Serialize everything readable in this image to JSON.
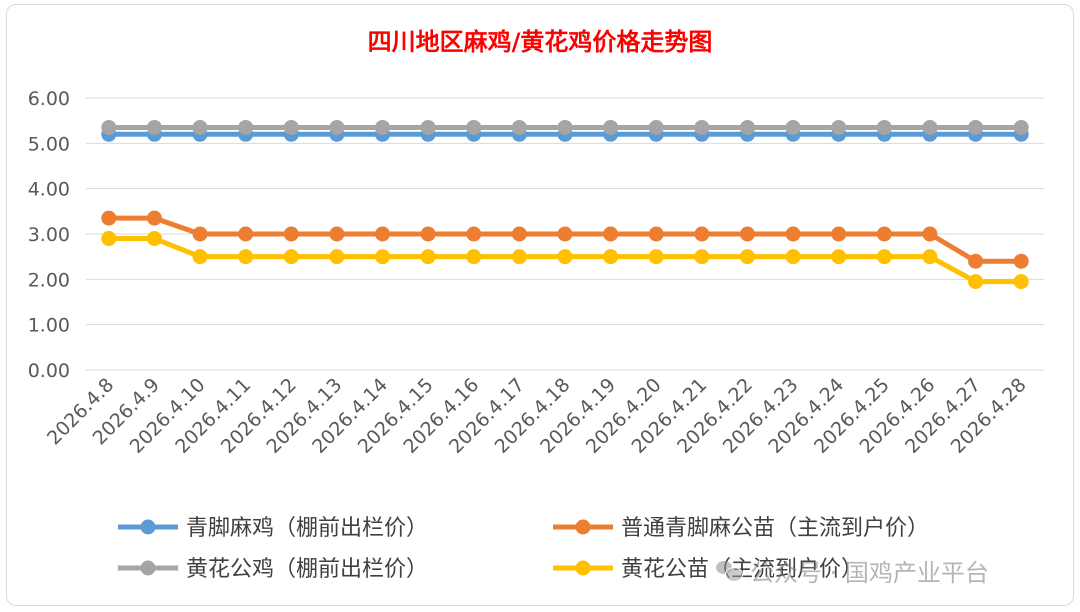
{
  "chart_data": {
    "type": "line",
    "title": "四川地区麻鸡/黄花鸡价格走势图",
    "title_color": "#ff0000",
    "categories": [
      "2026.4.8",
      "2026.4.9",
      "2026.4.10",
      "2026.4.11",
      "2026.4.12",
      "2026.4.13",
      "2026.4.14",
      "2026.4.15",
      "2026.4.16",
      "2026.4.17",
      "2026.4.18",
      "2026.4.19",
      "2026.4.20",
      "2026.4.21",
      "2026.4.22",
      "2026.4.23",
      "2026.4.24",
      "2026.4.25",
      "2026.4.26",
      "2026.4.27",
      "2026.4.28"
    ],
    "ylim": [
      0,
      6
    ],
    "yticks": [
      "0.00",
      "1.00",
      "2.00",
      "3.00",
      "4.00",
      "5.00",
      "6.00"
    ],
    "grid": true,
    "legend_position": "bottom",
    "series": [
      {
        "name": "青脚麻鸡（棚前出栏价）",
        "color": "#5b9bd5",
        "values": [
          5.2,
          5.2,
          5.2,
          5.2,
          5.2,
          5.2,
          5.2,
          5.2,
          5.2,
          5.2,
          5.2,
          5.2,
          5.2,
          5.2,
          5.2,
          5.2,
          5.2,
          5.2,
          5.2,
          5.2,
          5.2
        ]
      },
      {
        "name": "普通青脚麻公苗（主流到户价）",
        "color": "#ed7d31",
        "values": [
          3.35,
          3.35,
          3.0,
          3.0,
          3.0,
          3.0,
          3.0,
          3.0,
          3.0,
          3.0,
          3.0,
          3.0,
          3.0,
          3.0,
          3.0,
          3.0,
          3.0,
          3.0,
          3.0,
          2.4,
          2.4
        ]
      },
      {
        "name": "黄花公鸡（棚前出栏价）",
        "color": "#a5a5a5",
        "values": [
          5.35,
          5.35,
          5.35,
          5.35,
          5.35,
          5.35,
          5.35,
          5.35,
          5.35,
          5.35,
          5.35,
          5.35,
          5.35,
          5.35,
          5.35,
          5.35,
          5.35,
          5.35,
          5.35,
          5.35,
          5.35
        ]
      },
      {
        "name": "黄花公苗（主流到户价）",
        "color": "#ffc000",
        "values": [
          2.9,
          2.9,
          2.5,
          2.5,
          2.5,
          2.5,
          2.5,
          2.5,
          2.5,
          2.5,
          2.5,
          2.5,
          2.5,
          2.5,
          2.5,
          2.5,
          2.5,
          2.5,
          2.5,
          1.95,
          1.95
        ]
      }
    ]
  },
  "watermark": {
    "text": "公众号 · 国鸡产业平台",
    "icon": "wechat-icon"
  }
}
